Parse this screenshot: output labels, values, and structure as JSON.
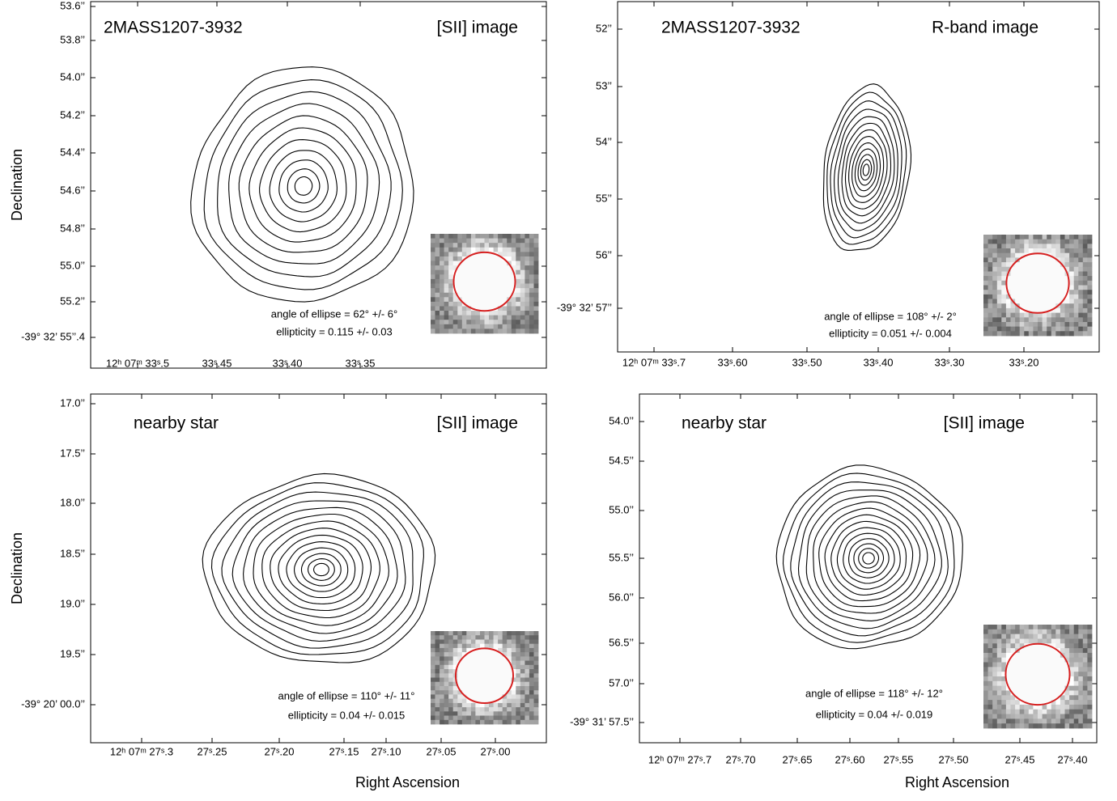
{
  "panels": [
    {
      "title": "2MASS1207-3932",
      "label": "[SII] image",
      "ylabel": "Declination",
      "yticks": [
        "53.6’’",
        "53.8’’",
        "54.0’’",
        "54.2’’",
        "54.4’’",
        "54.6’’",
        "54.8’’",
        "55.0’’",
        "55.2’’",
        "-39° 32’ 55’’.4"
      ],
      "xticks": [
        "12ʰ 07ᵐ 33ˢ.5",
        "33ˢ.45",
        "33ˢ.40",
        "33ˢ.35"
      ],
      "annotation": [
        "angle of ellipse = 62° +/- 6°",
        "ellipticity = 0.115 +/- 0.03"
      ]
    },
    {
      "title": "2MASS1207-3932",
      "label": "R-band image",
      "yticks": [
        "52’’",
        "53’’",
        "54’’",
        "55’’",
        "56’’",
        "-39° 32’ 57’’"
      ],
      "xticks": [
        "12ʰ 07ᵐ 33ˢ.7",
        "33ˢ.60",
        "33ˢ.50",
        "33ˢ.40",
        "33ˢ.30",
        "33ˢ.20"
      ],
      "annotation": [
        "angle of ellipse = 108° +/- 2°",
        "ellipticity = 0.051 +/- 0.004"
      ]
    },
    {
      "title": "nearby star",
      "label": "[SII] image",
      "ylabel": "Declination",
      "xlabel": "Right Ascension",
      "yticks": [
        "17.0’’",
        "17.5’’",
        "18.0’’",
        "18.5’’",
        "19.0’’",
        "19.5’’",
        "-39° 20’ 00.0’’"
      ],
      "xticks": [
        "12ʰ 07ᵐ 27ˢ.3",
        "27ˢ.25",
        "27ˢ.20",
        "27ˢ.15",
        "27ˢ.10",
        "27ˢ.05",
        "27ˢ.00"
      ],
      "annotation": [
        "angle of ellipse = 110° +/- 11°",
        "ellipticity = 0.04 +/- 0.015"
      ]
    },
    {
      "title": "nearby star",
      "label": "[SII] image",
      "xlabel": "Right Ascension",
      "yticks": [
        "54.0’’",
        "54.5’’",
        "55.0’’",
        "55.5’’",
        "56.0’’",
        "56.5’’",
        "57.0’’",
        "-39° 31’ 57.5’’"
      ],
      "xticks": [
        "12ʰ 07ᵐ 27ˢ.7",
        "27ˢ.70",
        "27ˢ.65",
        "27ˢ.60",
        "27ˢ.55",
        "27ˢ.50",
        "27ˢ.45",
        "27ˢ.40"
      ],
      "annotation": [
        "angle of ellipse = 118° +/- 12°",
        "ellipticity = 0.04 +/- 0.019"
      ]
    }
  ]
}
